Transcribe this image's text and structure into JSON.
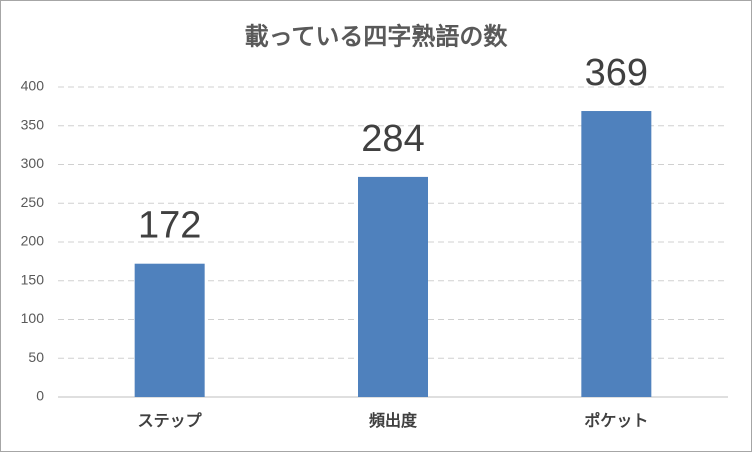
{
  "chart_data": {
    "type": "bar",
    "title": "載っている四字熟語の数",
    "categories": [
      "ステップ",
      "頻出度",
      "ポケット"
    ],
    "values": [
      172,
      284,
      369
    ],
    "color": "#4f81bd",
    "ylim": [
      0,
      400
    ],
    "yticks": [
      0,
      50,
      100,
      150,
      200,
      250,
      300,
      350,
      400
    ],
    "grid": true,
    "data_labels": true
  }
}
